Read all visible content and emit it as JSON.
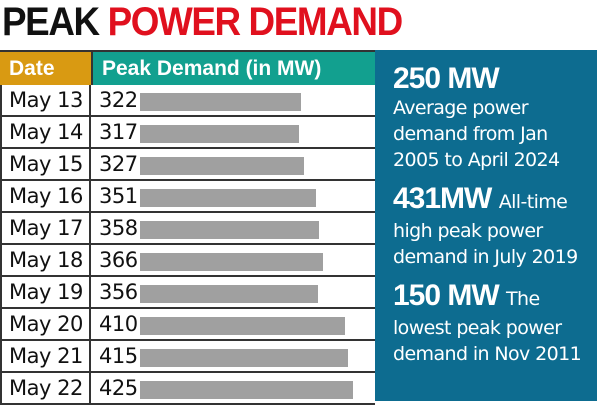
{
  "title": {
    "part1": "PEAK",
    "part2": "POWER DEMAND"
  },
  "table": {
    "headers": {
      "date": "Date",
      "value": "Peak Demand (in MW)"
    },
    "rows": [
      {
        "date": "May 13",
        "value": "322"
      },
      {
        "date": "May 14",
        "value": "317"
      },
      {
        "date": "May 15",
        "value": "327"
      },
      {
        "date": "May 16",
        "value": "351"
      },
      {
        "date": "May 17",
        "value": "358"
      },
      {
        "date": "May 18",
        "value": "366"
      },
      {
        "date": "May 19",
        "value": "356"
      },
      {
        "date": "May 20",
        "value": "410"
      },
      {
        "date": "May 21",
        "value": "415"
      },
      {
        "date": "May 22",
        "value": "425"
      }
    ]
  },
  "panel": {
    "stats": [
      {
        "figure": "250 MW",
        "lead": "",
        "text": "Average power demand from Jan 2005 to April 2024"
      },
      {
        "figure": "431MW",
        "lead": "All-time",
        "text": "high peak power demand in July 2019"
      },
      {
        "figure": "150 MW",
        "lead": "The",
        "text": "lowest peak power demand in Nov 2011"
      }
    ]
  },
  "colors": {
    "title_black": "#111111",
    "title_red": "#e0101e",
    "date_header": "#d99a12",
    "value_header": "#12a08f",
    "panel_blue": "#0d6c90",
    "bar_gray": "#a0a0a0"
  },
  "chart_data": {
    "type": "bar",
    "orientation": "horizontal",
    "title": "PEAK POWER DEMAND",
    "xlabel": "Peak Demand (in MW)",
    "ylabel": "Date",
    "categories": [
      "May 13",
      "May 14",
      "May 15",
      "May 16",
      "May 17",
      "May 18",
      "May 19",
      "May 20",
      "May 21",
      "May 22"
    ],
    "values": [
      322,
      317,
      327,
      351,
      358,
      366,
      356,
      410,
      415,
      425
    ],
    "grid": false,
    "legend": null,
    "annotations": [
      "250 MW Average power demand from Jan 2005 to April 2024",
      "431MW All-time high peak power demand in July 2019",
      "150 MW The lowest peak power demand in Nov 2011"
    ]
  }
}
